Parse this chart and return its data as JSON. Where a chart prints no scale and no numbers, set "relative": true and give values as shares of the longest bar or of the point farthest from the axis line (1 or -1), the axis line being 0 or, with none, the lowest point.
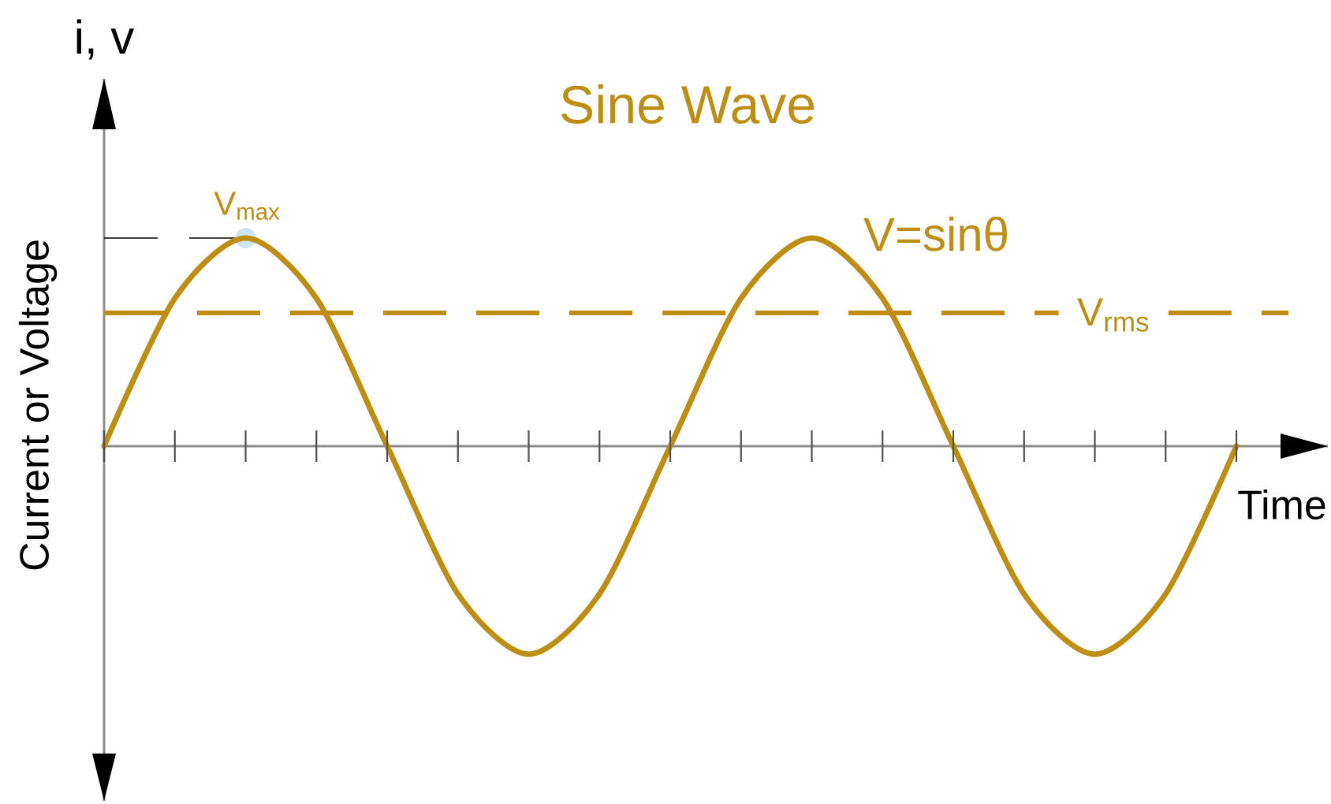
{
  "chart_data": {
    "type": "line",
    "title": "Sine Wave",
    "xlabel": "Time",
    "ylabel": "Current or Voltage",
    "relative": true,
    "categories": [
      null,
      null,
      null,
      null,
      null,
      null,
      null,
      null,
      null,
      null,
      null,
      null,
      null,
      null,
      null,
      null,
      null
    ],
    "series": [
      {
        "name": "V=sinθ",
        "color": "#be8e14",
        "values": [
          0,
          0.71,
          1,
          0.71,
          0,
          -0.71,
          -1,
          -0.71,
          0,
          0.71,
          1,
          0.71,
          0,
          -0.71,
          -1,
          -0.71,
          0
        ]
      }
    ],
    "ref_lines": [
      {
        "axis": "y",
        "value": 0.64,
        "label": "V$_{rms}$",
        "color": "#be8e14",
        "line_style": "dashed"
      }
    ],
    "annotations": [
      "i, v",
      {
        "text": "V$_{max}$",
        "y": 1
      }
    ]
  }
}
